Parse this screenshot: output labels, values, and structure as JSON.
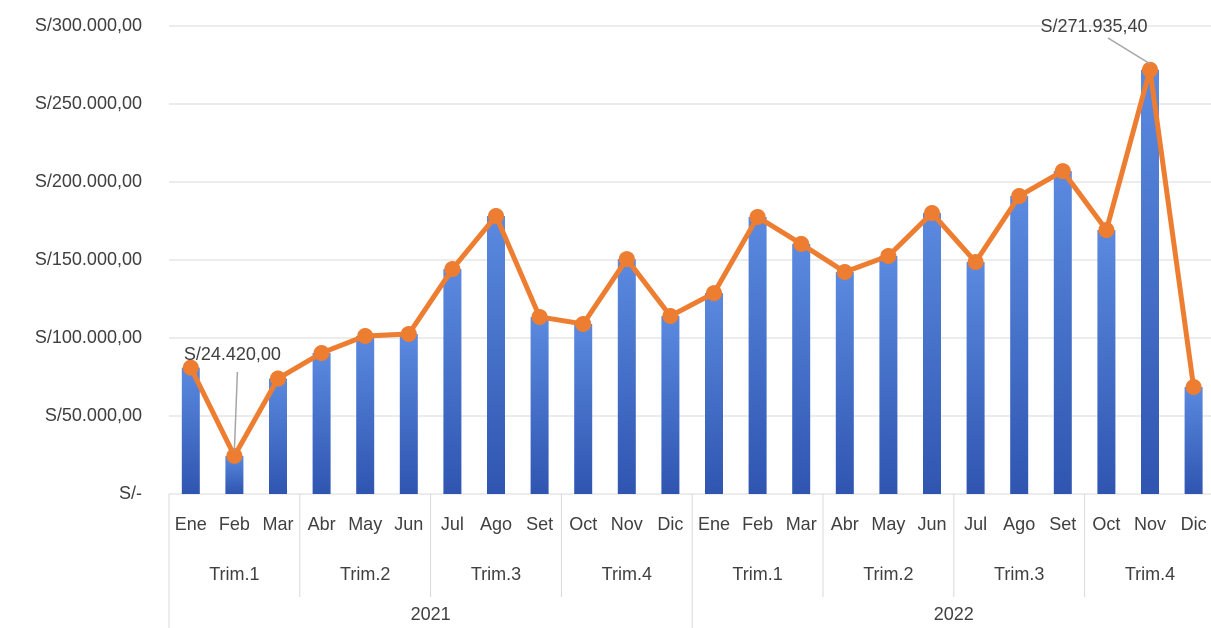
{
  "chart_data": {
    "type": "bar_line",
    "categories": [
      "Ene",
      "Feb",
      "Mar",
      "Abr",
      "May",
      "Jun",
      "Jul",
      "Ago",
      "Set",
      "Oct",
      "Nov",
      "Dic",
      "Ene",
      "Feb",
      "Mar",
      "Abr",
      "May",
      "Jun",
      "Jul",
      "Ago",
      "Set",
      "Oct",
      "Nov",
      "Dic"
    ],
    "quarters": [
      "Trim.1",
      "Trim.2",
      "Trim.3",
      "Trim.4",
      "Trim.1",
      "Trim.2",
      "Trim.3",
      "Trim.4"
    ],
    "years": [
      "2021",
      "2022"
    ],
    "values": [
      81000,
      24420,
      74000,
      90400,
      101300,
      102600,
      144200,
      178200,
      113500,
      109000,
      150600,
      114100,
      128800,
      177600,
      160300,
      142300,
      152600,
      180100,
      148700,
      191000,
      207000,
      169200,
      271935.4,
      68600
    ],
    "value_labels": [
      null,
      "S/24.420,00",
      null,
      null,
      null,
      null,
      null,
      null,
      null,
      null,
      null,
      null,
      null,
      null,
      null,
      null,
      null,
      null,
      null,
      null,
      null,
      null,
      "S/271.935,40",
      null
    ],
    "bar_color": "#4472c4",
    "line_color": "#ed7d31",
    "ylim": [
      0,
      300000
    ],
    "yticks": [
      {
        "value": 0,
        "label": "S/-"
      },
      {
        "value": 50000,
        "label": "S/50.000,00"
      },
      {
        "value": 100000,
        "label": "S/100.000,00"
      },
      {
        "value": 150000,
        "label": "S/150.000,00"
      },
      {
        "value": 200000,
        "label": "S/200.000,00"
      },
      {
        "value": 250000,
        "label": "S/250.000,00"
      },
      {
        "value": 300000,
        "label": "S/300.000,00"
      }
    ],
    "grid": true
  }
}
